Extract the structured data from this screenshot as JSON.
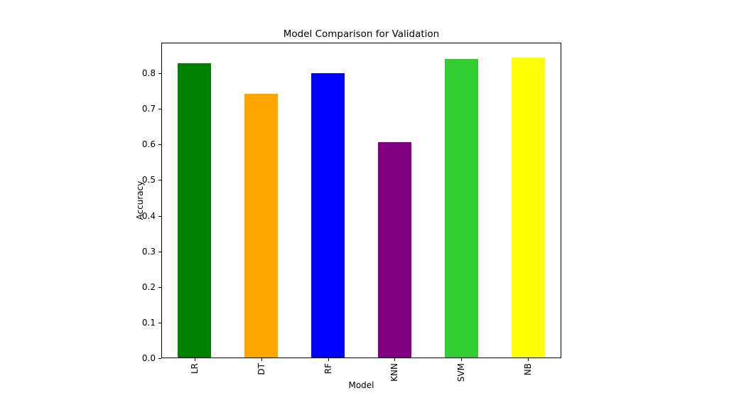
{
  "figure": {
    "background_color": "#ffffff",
    "axes_edge_color": "#000000",
    "text_color": "#000000"
  },
  "chart_data": {
    "type": "bar",
    "title": "Model Comparison for Validation",
    "xlabel": "Model",
    "ylabel": "Accuracy",
    "categories": [
      "LR",
      "DT",
      "RF",
      "KNN",
      "SVM",
      "NB"
    ],
    "values": [
      0.827,
      0.74,
      0.798,
      0.604,
      0.838,
      0.843
    ],
    "bar_colors": [
      "#008000",
      "#ffa500",
      "#0000ff",
      "#800080",
      "#32cd32",
      "#ffff00"
    ],
    "ylim": [
      0,
      0.886
    ],
    "yticks": [
      "0.0",
      "0.1",
      "0.2",
      "0.3",
      "0.4",
      "0.5",
      "0.6",
      "0.7",
      "0.8"
    ],
    "grid": false,
    "legend": null,
    "bar_width_fraction": 0.5,
    "xtick_rotation": "vertical"
  }
}
